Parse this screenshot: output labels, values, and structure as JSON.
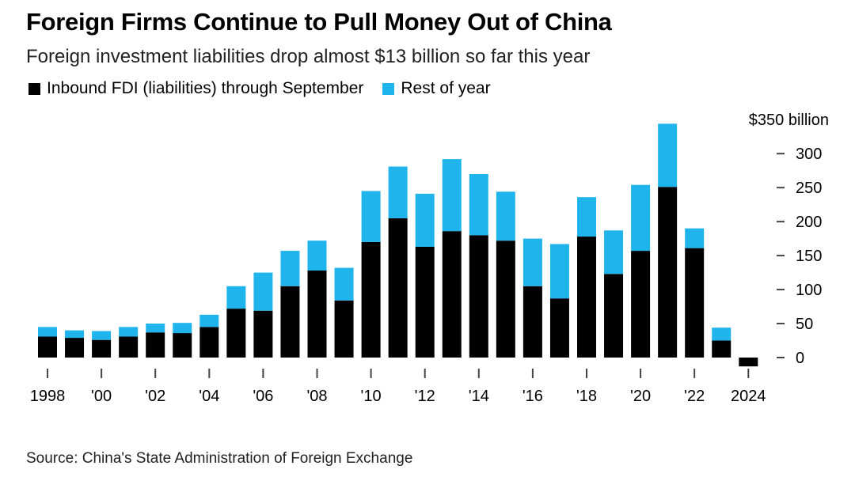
{
  "title": "Foreign Firms Continue to Pull Money Out of China",
  "subtitle": "Foreign investment liabilities drop almost $13 billion so far this year",
  "source": "Source: China's State Administration of Foreign Exchange",
  "colors": {
    "through_september": "#000000",
    "rest_of_year": "#1fb5ec",
    "axis": "#444444"
  },
  "chart_data": {
    "type": "bar",
    "stacked": true,
    "categories": [
      "1998",
      "1999",
      "2000",
      "2001",
      "2002",
      "2003",
      "2004",
      "2005",
      "2006",
      "2007",
      "2008",
      "2009",
      "2010",
      "2011",
      "2012",
      "2013",
      "2014",
      "2015",
      "2016",
      "2017",
      "2018",
      "2019",
      "2020",
      "2021",
      "2022",
      "2023",
      "2024"
    ],
    "series": [
      {
        "name": "Inbound FDI (liabilities) through September",
        "values": [
          31,
          29,
          26,
          31,
          37,
          36,
          45,
          72,
          69,
          105,
          128,
          84,
          170,
          205,
          163,
          186,
          180,
          172,
          105,
          87,
          178,
          123,
          157,
          251,
          161,
          25,
          -13
        ]
      },
      {
        "name": "Rest of year",
        "values": [
          14,
          11,
          13,
          14,
          13,
          15,
          18,
          33,
          56,
          52,
          44,
          48,
          75,
          76,
          78,
          106,
          90,
          72,
          70,
          80,
          58,
          64,
          97,
          93,
          29,
          19,
          0
        ]
      }
    ],
    "x_tick_labels": [
      "1998",
      "'00",
      "'02",
      "'04",
      "'06",
      "'08",
      "'10",
      "'12",
      "'14",
      "'16",
      "'18",
      "'20",
      "'22",
      "2024"
    ],
    "y_tick_labels": [
      "0",
      "50",
      "100",
      "150",
      "200",
      "250",
      "300",
      "$350 billion"
    ],
    "y_ticks": [
      0,
      50,
      100,
      150,
      200,
      250,
      300,
      350
    ],
    "ylim": [
      -15,
      350
    ],
    "y_axis_position": "right",
    "legend_position": "top-left",
    "grid": false
  }
}
